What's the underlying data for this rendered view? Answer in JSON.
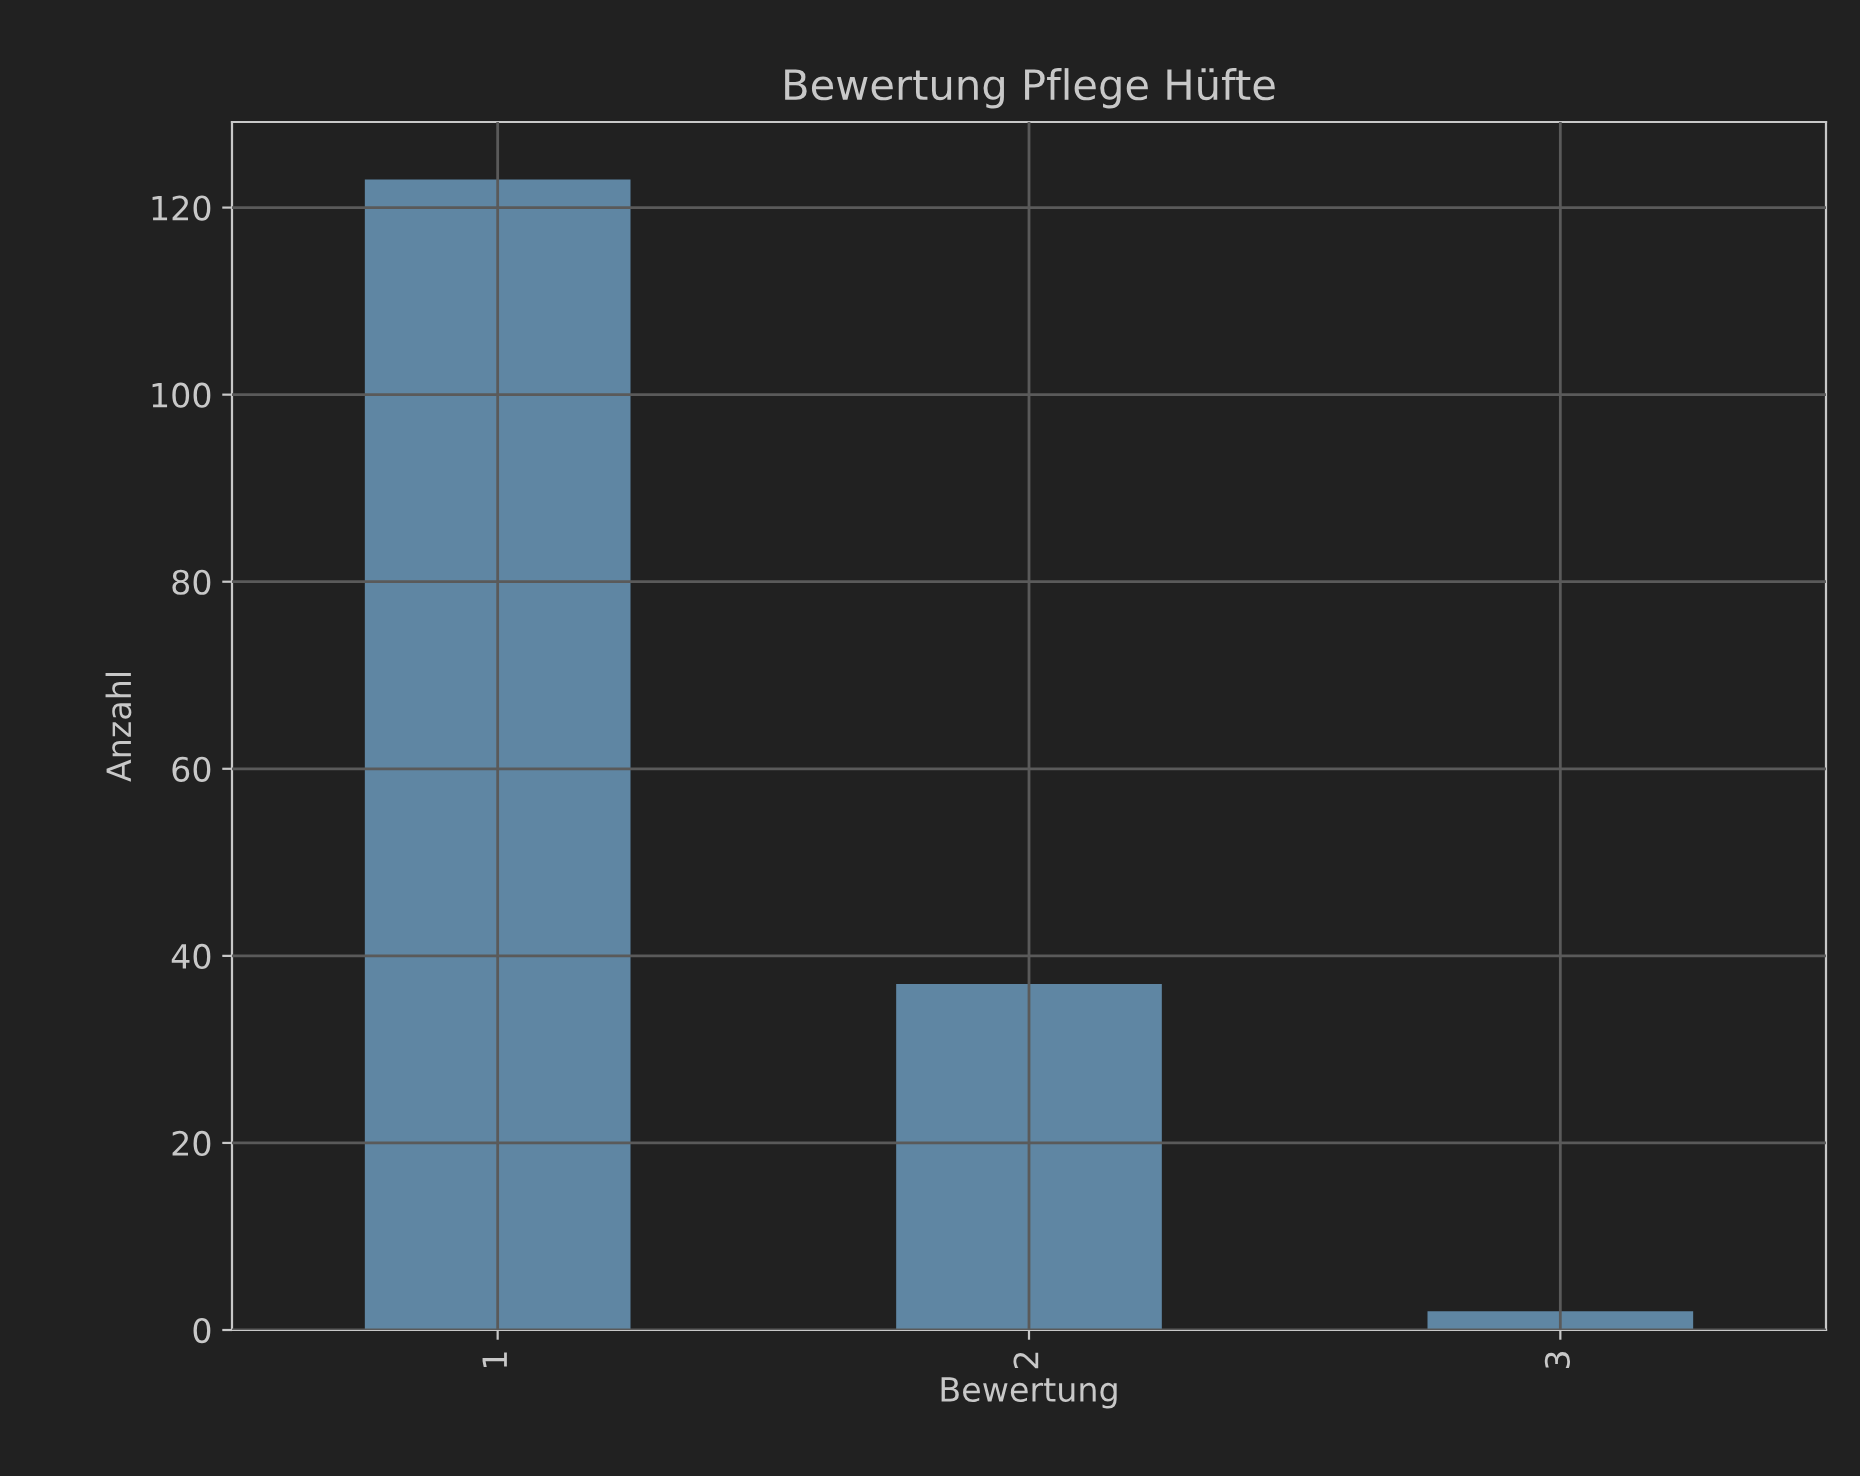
{
  "chart_data": {
    "type": "bar",
    "title": "Bewertung Pflege Hüfte",
    "xlabel": "Bewertung",
    "ylabel": "Anzahl",
    "categories": [
      "1",
      "2",
      "3"
    ],
    "values": [
      123,
      37,
      2
    ],
    "color": "#5f86a3",
    "ylim": [
      0,
      129.15
    ],
    "yticks": [
      0,
      20,
      40,
      60,
      80,
      100,
      120
    ],
    "grid": true
  }
}
